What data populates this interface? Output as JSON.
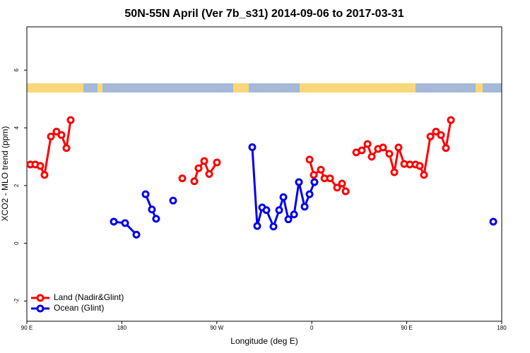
{
  "chart_data": {
    "type": "line",
    "title": "50N-55N April (Ver 7b_s31)   2014-09-06 to 2017-03-31",
    "x_label": "Longitude (deg E)",
    "y_label": "XCO2 - MLO trend (ppm)",
    "xlim": [
      -270,
      180
    ],
    "xticks": [
      {
        "value": -270,
        "label": "90 E"
      },
      {
        "value": -180,
        "label": "180"
      },
      {
        "value": -90,
        "label": "90 W"
      },
      0,
      {
        "value": 90,
        "label": "90 E"
      },
      180
    ],
    "ylim": [
      -2.7,
      7.5
    ],
    "yticks": [
      -2,
      0,
      2,
      4,
      6
    ],
    "legend": "bottom-left",
    "series": [
      {
        "name": "Land (Nadir&Glint)",
        "color": "#ff0000",
        "x": [
          -266.7,
          -262.0,
          -257.3,
          -253.3,
          -247.2,
          -241.9,
          -237.2,
          -232.5,
          -228.5,
          null,
          -122.7,
          null,
          -111.3,
          -107.3,
          -101.9,
          -97.2,
          -89.9,
          null,
          -2.1,
          1.9,
          8.6,
          12.0,
          17.3,
          24.0,
          28.7,
          32.1,
          null,
          42.1,
          47.4,
          52.8,
          56.8,
          62.8,
          67.5,
          73.5,
          78.2,
          82.2,
          87.6,
          92.9,
          98.3,
          102.3,
          106.3,
          112.4,
          117.7,
          122.4,
          127.1,
          131.8
        ],
        "values": [
          2.73,
          2.73,
          2.68,
          2.37,
          3.7,
          3.87,
          3.75,
          3.3,
          4.27,
          null,
          2.25,
          null,
          2.15,
          2.6,
          2.85,
          2.4,
          2.8,
          null,
          2.9,
          2.37,
          2.55,
          2.25,
          2.25,
          1.93,
          2.07,
          1.8,
          null,
          3.15,
          3.22,
          3.44,
          3.0,
          3.27,
          3.32,
          3.1,
          2.46,
          3.32,
          2.75,
          2.73,
          2.73,
          2.68,
          2.37,
          3.7,
          3.87,
          3.75,
          3.3,
          4.27
        ]
      },
      {
        "name": "Ocean (Glint)",
        "color": "#0000ee",
        "x": [
          -187.6,
          -176.9,
          -166.2,
          null,
          -157.5,
          -151.5,
          -147.5,
          null,
          -131.4,
          null,
          -56.4,
          -51.7,
          -47.0,
          -43.0,
          -36.3,
          -30.9,
          -26.9,
          -22.2,
          -16.8,
          -12.2,
          -6.8,
          -2.1,
          2.5,
          null,
          172.0
        ],
        "values": [
          0.75,
          0.7,
          0.3,
          null,
          1.7,
          1.17,
          0.85,
          null,
          1.48,
          null,
          3.33,
          0.6,
          1.24,
          1.15,
          0.58,
          1.15,
          1.6,
          0.83,
          1.0,
          2.12,
          1.27,
          1.7,
          2.12,
          null,
          0.75
        ]
      }
    ]
  }
}
